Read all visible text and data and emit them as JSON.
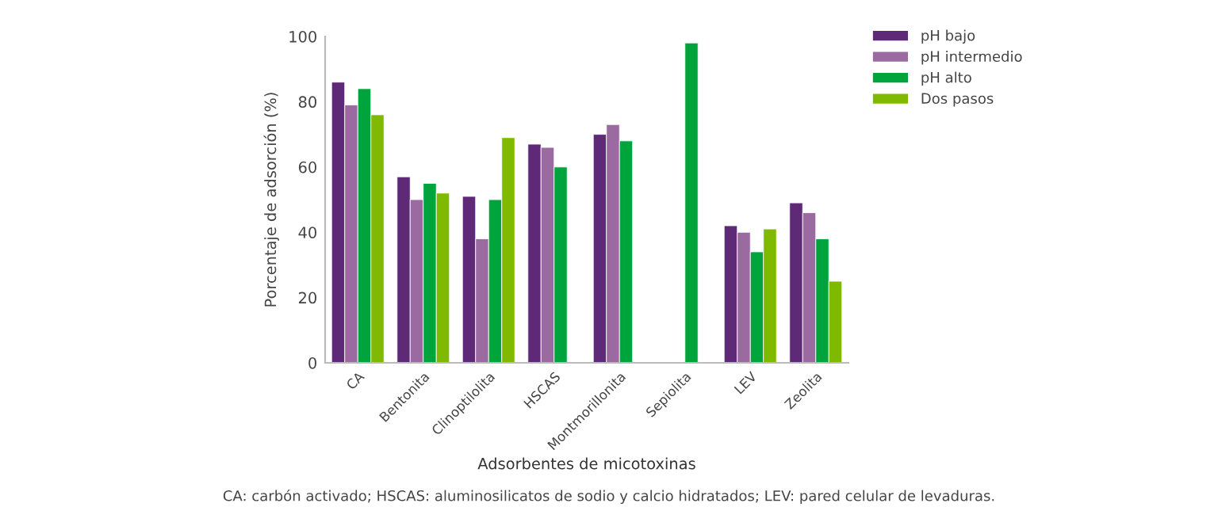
{
  "chart_data": {
    "type": "bar",
    "xlabel": "Adsorbentes de micotoxinas",
    "ylabel": "Porcentaje de adsorción (%)",
    "categories": [
      "CA",
      "Bentonita",
      "Clinoptilolita",
      "HSCAS",
      "Montmorillonita",
      "Sepiolita",
      "LEV",
      "Zeolita"
    ],
    "series": [
      {
        "name": "pH bajo",
        "color": "#5e2a78",
        "values": [
          86,
          57,
          51,
          67,
          70,
          null,
          42,
          49
        ]
      },
      {
        "name": "pH intermedio",
        "color": "#9b6aa0",
        "values": [
          79,
          50,
          38,
          66,
          73,
          null,
          40,
          46
        ]
      },
      {
        "name": "pH alto",
        "color": "#00a43c",
        "values": [
          84,
          55,
          50,
          60,
          68,
          98,
          34,
          38
        ]
      },
      {
        "name": "Dos pasos",
        "color": "#7fba00",
        "values": [
          76,
          52,
          69,
          null,
          null,
          null,
          41,
          25
        ]
      }
    ],
    "ylim": [
      0,
      100
    ],
    "yticks": [
      0,
      20,
      40,
      60,
      80,
      100
    ],
    "grid": false,
    "legend": "top right",
    "annotations": [
      "CA: carbón activado; HSCAS: aluminosilicatos de sodio y calcio hidratados; LEV: pared celular de levaduras."
    ]
  }
}
